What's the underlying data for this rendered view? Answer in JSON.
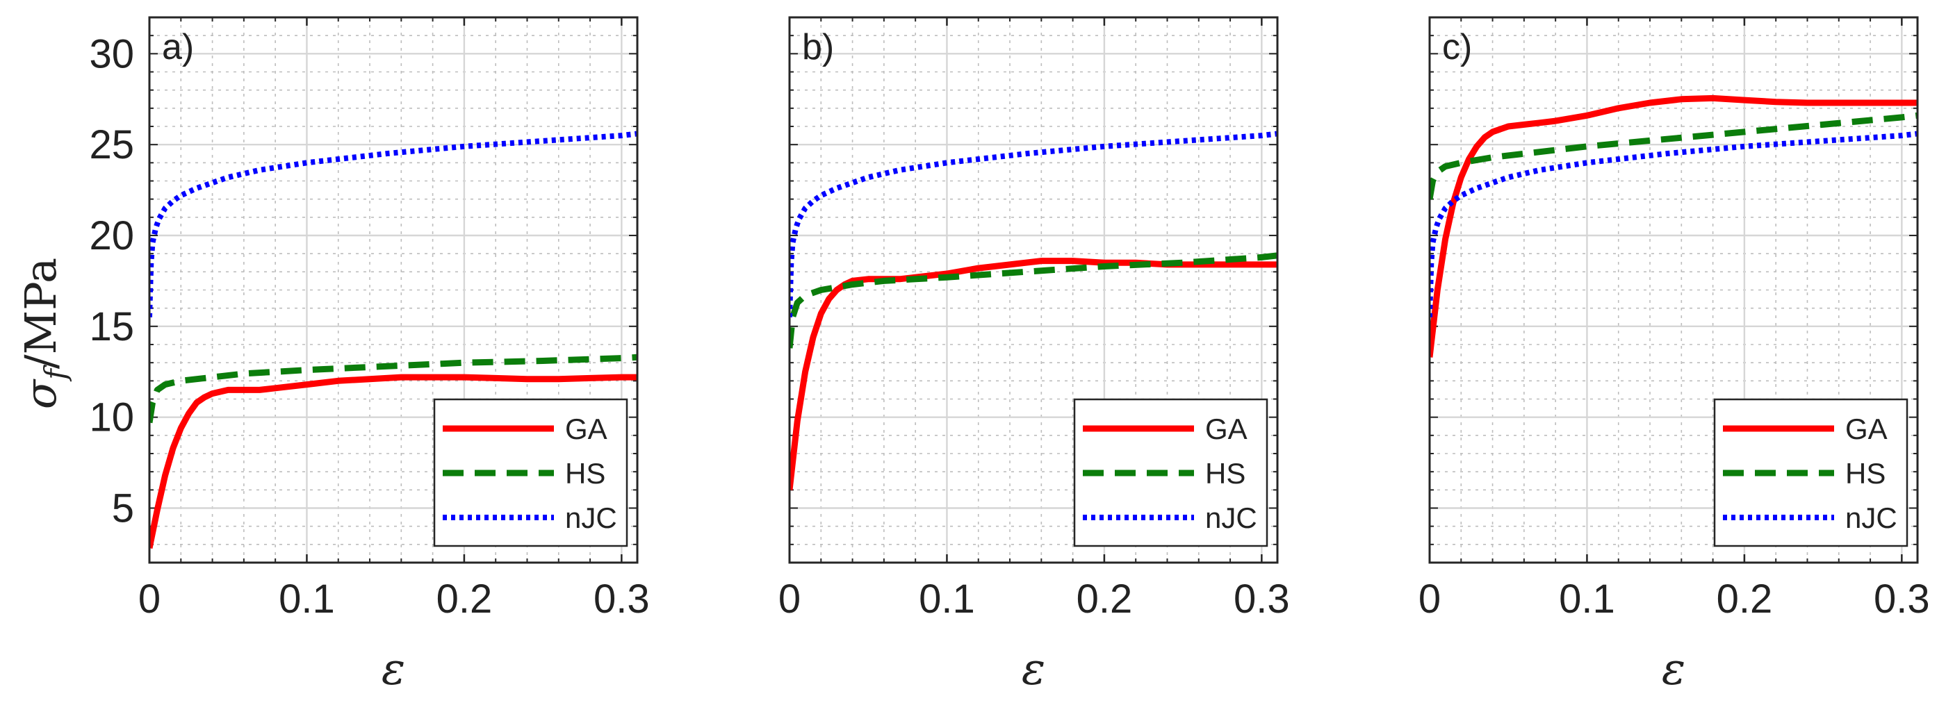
{
  "chart_data": [
    {
      "type": "line",
      "panel_label": "a)",
      "xlabel": "ε",
      "ylabel_main": "σ",
      "ylabel_sub": "f",
      "ylabel_unit": "/MPa",
      "xlim": [
        0,
        0.31
      ],
      "ylim": [
        2,
        32
      ],
      "xticks": [
        "0",
        "0.1",
        "0.2",
        "0.3"
      ],
      "yticks": [
        "5",
        "10",
        "15",
        "20",
        "25",
        "30"
      ],
      "grid": true,
      "legend": "bottom-right",
      "series": [
        {
          "name": "GA",
          "color": "#ff0000",
          "style": "solid",
          "x": [
            0,
            0.005,
            0.01,
            0.015,
            0.02,
            0.025,
            0.03,
            0.035,
            0.04,
            0.05,
            0.06,
            0.07,
            0.08,
            0.1,
            0.12,
            0.14,
            0.16,
            0.18,
            0.2,
            0.22,
            0.24,
            0.26,
            0.28,
            0.3,
            0.31
          ],
          "y": [
            2.8,
            4.9,
            6.8,
            8.3,
            9.4,
            10.2,
            10.8,
            11.1,
            11.3,
            11.5,
            11.5,
            11.5,
            11.6,
            11.8,
            12.0,
            12.1,
            12.2,
            12.2,
            12.2,
            12.15,
            12.1,
            12.1,
            12.15,
            12.2,
            12.2
          ]
        },
        {
          "name": "HS",
          "color": "#0b7d0b",
          "style": "dashed",
          "x": [
            0,
            0.002,
            0.005,
            0.01,
            0.02,
            0.04,
            0.06,
            0.08,
            0.1,
            0.15,
            0.2,
            0.25,
            0.3,
            0.31
          ],
          "y": [
            9.7,
            10.8,
            11.5,
            11.8,
            12.0,
            12.2,
            12.4,
            12.5,
            12.6,
            12.8,
            13.0,
            13.1,
            13.25,
            13.3
          ]
        },
        {
          "name": "nJC",
          "color": "#0000ff",
          "style": "dotted",
          "x": [
            0,
            0.001,
            0.002,
            0.004,
            0.006,
            0.01,
            0.015,
            0.02,
            0.03,
            0.05,
            0.07,
            0.1,
            0.15,
            0.2,
            0.25,
            0.3,
            0.31
          ],
          "y": [
            15.5,
            18.5,
            19.6,
            20.4,
            20.9,
            21.5,
            21.9,
            22.2,
            22.6,
            23.2,
            23.6,
            24.0,
            24.5,
            24.9,
            25.2,
            25.5,
            25.6
          ]
        }
      ]
    },
    {
      "type": "line",
      "panel_label": "b)",
      "xlabel": "ε",
      "xlim": [
        0,
        0.31
      ],
      "ylim": [
        2,
        32
      ],
      "xticks": [
        "0",
        "0.1",
        "0.2",
        "0.3"
      ],
      "grid": true,
      "legend": "bottom-right",
      "series": [
        {
          "name": "GA",
          "color": "#ff0000",
          "style": "solid",
          "x": [
            0,
            0.005,
            0.01,
            0.015,
            0.02,
            0.025,
            0.03,
            0.035,
            0.04,
            0.05,
            0.06,
            0.07,
            0.08,
            0.1,
            0.12,
            0.14,
            0.16,
            0.18,
            0.2,
            0.22,
            0.24,
            0.26,
            0.28,
            0.3,
            0.31
          ],
          "y": [
            6.0,
            9.8,
            12.5,
            14.4,
            15.7,
            16.5,
            17.0,
            17.3,
            17.5,
            17.6,
            17.6,
            17.6,
            17.7,
            17.9,
            18.2,
            18.4,
            18.6,
            18.6,
            18.5,
            18.5,
            18.4,
            18.4,
            18.4,
            18.4,
            18.4
          ]
        },
        {
          "name": "HS",
          "color": "#0b7d0b",
          "style": "dashed",
          "x": [
            0,
            0.002,
            0.005,
            0.01,
            0.02,
            0.04,
            0.06,
            0.08,
            0.1,
            0.15,
            0.2,
            0.25,
            0.3,
            0.31
          ],
          "y": [
            13.8,
            15.5,
            16.3,
            16.7,
            17.0,
            17.3,
            17.5,
            17.6,
            17.7,
            18.0,
            18.3,
            18.5,
            18.8,
            18.9
          ]
        },
        {
          "name": "nJC",
          "color": "#0000ff",
          "style": "dotted",
          "x": [
            0,
            0.001,
            0.002,
            0.004,
            0.006,
            0.01,
            0.015,
            0.02,
            0.03,
            0.05,
            0.07,
            0.1,
            0.15,
            0.2,
            0.25,
            0.3,
            0.31
          ],
          "y": [
            15.5,
            18.5,
            19.6,
            20.4,
            20.9,
            21.5,
            21.9,
            22.2,
            22.6,
            23.2,
            23.6,
            24.0,
            24.5,
            24.9,
            25.2,
            25.5,
            25.6
          ]
        }
      ]
    },
    {
      "type": "line",
      "panel_label": "c)",
      "xlabel": "ε",
      "xlim": [
        0,
        0.31
      ],
      "ylim": [
        2,
        32
      ],
      "xticks": [
        "0",
        "0.1",
        "0.2",
        "0.3"
      ],
      "grid": true,
      "legend": "bottom-right",
      "series": [
        {
          "name": "GA",
          "color": "#ff0000",
          "style": "solid",
          "x": [
            0,
            0.005,
            0.01,
            0.015,
            0.02,
            0.025,
            0.03,
            0.035,
            0.04,
            0.05,
            0.06,
            0.07,
            0.08,
            0.1,
            0.12,
            0.14,
            0.16,
            0.18,
            0.2,
            0.22,
            0.24,
            0.26,
            0.28,
            0.3,
            0.31
          ],
          "y": [
            13.3,
            17.0,
            19.8,
            21.8,
            23.2,
            24.2,
            24.9,
            25.4,
            25.7,
            26.0,
            26.1,
            26.2,
            26.3,
            26.6,
            27.0,
            27.3,
            27.5,
            27.55,
            27.45,
            27.35,
            27.3,
            27.3,
            27.3,
            27.3,
            27.3
          ]
        },
        {
          "name": "HS",
          "color": "#0b7d0b",
          "style": "dashed",
          "x": [
            0,
            0.002,
            0.005,
            0.01,
            0.02,
            0.04,
            0.06,
            0.08,
            0.1,
            0.15,
            0.2,
            0.25,
            0.3,
            0.31
          ],
          "y": [
            22.0,
            23.0,
            23.5,
            23.8,
            24.0,
            24.3,
            24.5,
            24.7,
            24.9,
            25.3,
            25.7,
            26.1,
            26.5,
            26.6
          ]
        },
        {
          "name": "nJC",
          "color": "#0000ff",
          "style": "dotted",
          "x": [
            0,
            0.001,
            0.002,
            0.004,
            0.006,
            0.01,
            0.015,
            0.02,
            0.03,
            0.05,
            0.07,
            0.1,
            0.15,
            0.2,
            0.25,
            0.3,
            0.31
          ],
          "y": [
            15.5,
            18.5,
            19.6,
            20.4,
            20.9,
            21.5,
            21.9,
            22.2,
            22.6,
            23.2,
            23.6,
            24.0,
            24.5,
            24.9,
            25.2,
            25.5,
            25.6
          ]
        }
      ]
    }
  ]
}
